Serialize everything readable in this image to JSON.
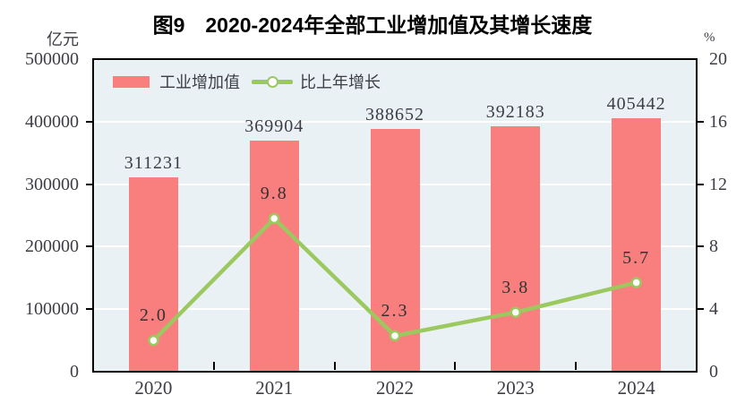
{
  "title": "图9　2020-2024年全部工业增加值及其增长速度",
  "units": {
    "left": "亿元",
    "right": "%"
  },
  "legend": {
    "bar_label": "工业增加值",
    "line_label": "比上年增长"
  },
  "colors": {
    "bar": "#F97E7E",
    "line": "#9CC95F",
    "marker_fill": "#FFFFFF",
    "plot_background": "#E9F1F5",
    "gridline": "#FFFFFF",
    "axis": "#000000",
    "text": "#3d3d46"
  },
  "chart_data": {
    "type": "bar",
    "subtype": "bar+line combo, dual axis",
    "title": "图9　2020-2024年全部工业增加值及其增长速度",
    "categories": [
      "2020",
      "2021",
      "2022",
      "2023",
      "2024"
    ],
    "series": [
      {
        "name": "工业增加值",
        "type": "bar",
        "axis": "left",
        "unit": "亿元",
        "color": "#F97E7E",
        "values": [
          311231,
          369904,
          388652,
          392183,
          405442
        ],
        "labels": [
          "311231",
          "369904",
          "388652",
          "392183",
          "405442"
        ]
      },
      {
        "name": "比上年增长",
        "type": "line",
        "axis": "right",
        "unit": "%",
        "color": "#9CC95F",
        "marker": "white-circle",
        "values": [
          2.0,
          9.8,
          2.3,
          3.8,
          5.7
        ],
        "labels": [
          "2.0",
          "9.8",
          "2.3",
          "3.8",
          "5.7"
        ]
      }
    ],
    "left_axis": {
      "unit": "亿元",
      "min": 0,
      "max": 500000,
      "tick_step": 100000,
      "tick_labels": [
        "0",
        "100000",
        "200000",
        "300000",
        "400000",
        "500000"
      ]
    },
    "right_axis": {
      "unit": "%",
      "min": 0,
      "max": 20,
      "tick_step": 4,
      "tick_labels": [
        "0",
        "4",
        "8",
        "12",
        "16",
        "20"
      ]
    },
    "grid": "horizontal white gridlines",
    "legend_position": "top-left inside plot"
  }
}
